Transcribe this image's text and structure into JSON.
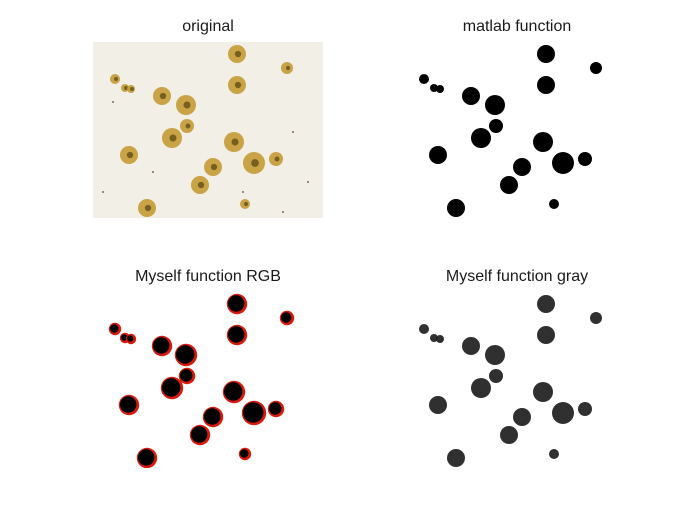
{
  "figure": {
    "panels": [
      {
        "key": "original",
        "title": "original"
      },
      {
        "key": "matlab",
        "title": "matlab function"
      },
      {
        "key": "rgb",
        "title": "Myself function RGB"
      },
      {
        "key": "gray",
        "title": "Myself function gray"
      }
    ]
  },
  "colors": {
    "background": "#ffffff",
    "original_bg": "#f1efe6",
    "cell_fill": "#c49a33",
    "cell_dark": "#5a4a14",
    "mask_black": "#000000",
    "rgb_edge": "#d81a0b",
    "gray_fill": "#1e1e1e"
  }
}
